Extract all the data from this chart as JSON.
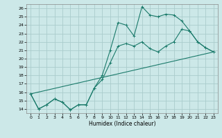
{
  "xlabel": "Humidex (Indice chaleur)",
  "bg_color": "#cce8e8",
  "grid_color": "#aacccc",
  "line_color": "#1a7a6a",
  "xlim": [
    -0.5,
    23.5
  ],
  "ylim": [
    13.5,
    26.5
  ],
  "xticks": [
    0,
    1,
    2,
    3,
    4,
    5,
    6,
    7,
    8,
    9,
    10,
    11,
    12,
    13,
    14,
    15,
    16,
    17,
    18,
    19,
    20,
    21,
    22,
    23
  ],
  "yticks": [
    14,
    15,
    16,
    17,
    18,
    19,
    20,
    21,
    22,
    23,
    24,
    25,
    26
  ],
  "line1_x": [
    0,
    1,
    2,
    3,
    4,
    5,
    6,
    7,
    8,
    9,
    10,
    11,
    12,
    13,
    14,
    15,
    16,
    17,
    18,
    19,
    20,
    21,
    22,
    23
  ],
  "line1_y": [
    15.8,
    14.0,
    14.5,
    15.2,
    14.8,
    13.9,
    14.5,
    14.5,
    16.5,
    18.0,
    21.0,
    24.3,
    24.0,
    22.7,
    26.2,
    25.2,
    25.0,
    25.3,
    25.2,
    24.5,
    23.3,
    22.0,
    21.3,
    20.8
  ],
  "line2_x": [
    0,
    1,
    2,
    3,
    4,
    5,
    6,
    7,
    8,
    9,
    10,
    11,
    12,
    13,
    14,
    15,
    16,
    17,
    18,
    19,
    20,
    21,
    22,
    23
  ],
  "line2_y": [
    15.8,
    14.0,
    14.5,
    15.2,
    14.8,
    13.9,
    14.5,
    14.5,
    16.5,
    17.5,
    19.5,
    21.5,
    21.8,
    21.5,
    22.0,
    21.2,
    20.8,
    21.5,
    22.0,
    23.5,
    23.3,
    22.0,
    21.3,
    20.8
  ],
  "line3_x": [
    0,
    23
  ],
  "line3_y": [
    15.8,
    20.8
  ]
}
